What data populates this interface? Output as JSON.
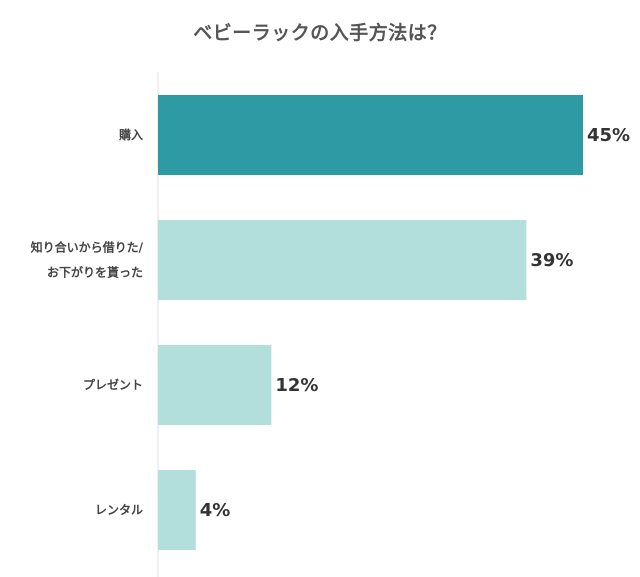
{
  "chart_data": {
    "type": "bar",
    "orientation": "horizontal",
    "title": "ベビーラックの入手方法は？",
    "categories": [
      [
        "購入"
      ],
      [
        "知り合いから借りた/",
        "お下がりを貰った"
      ],
      [
        "プレゼント"
      ],
      [
        "レンタル"
      ]
    ],
    "values": [
      45,
      39,
      12,
      4
    ],
    "value_labels": [
      "45%",
      "39%",
      "12%",
      "4%"
    ],
    "unit": "%",
    "xlim": [
      0,
      45
    ],
    "grid": false,
    "legend": "none",
    "colors": {
      "highlight": "#2e9aa3",
      "default": "#b2dfdb",
      "axis": "#e0e0e0"
    }
  }
}
